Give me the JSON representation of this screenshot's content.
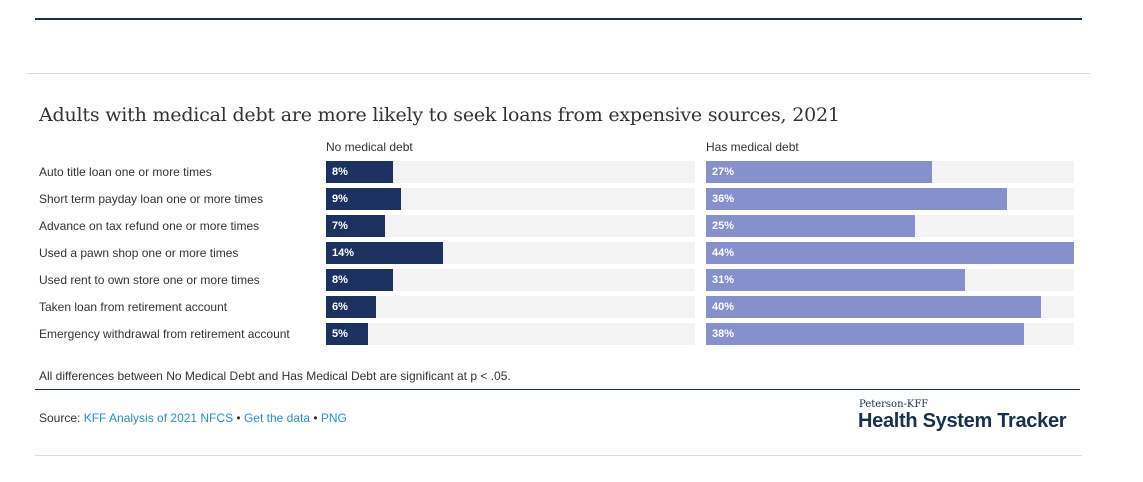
{
  "chart_data": {
    "type": "bar",
    "title": "Adults with medical debt are more likely to seek loans from expensive sources, 2021",
    "categories": [
      "Auto title loan one or more times",
      "Short term payday loan one or more times",
      "Advance on tax refund one or more times",
      "Used a pawn shop one or more times",
      "Used rent to own store one or more times",
      "Taken loan from retirement account",
      "Emergency withdrawal from retirement account"
    ],
    "series": [
      {
        "name": "No medical debt",
        "values": [
          8,
          9,
          7,
          14,
          8,
          6,
          5
        ],
        "labels": [
          "8%",
          "9%",
          "7%",
          "14%",
          "8%",
          "6%",
          "5%"
        ],
        "color": "#1c3160",
        "max": 44
      },
      {
        "name": "Has medical debt",
        "values": [
          27,
          36,
          25,
          44,
          31,
          40,
          38
        ],
        "labels": [
          "27%",
          "36%",
          "25%",
          "44%",
          "31%",
          "40%",
          "38%"
        ],
        "color": "#8590cc",
        "max": 44
      }
    ],
    "xlabel": "",
    "ylabel": ""
  },
  "note": "All differences between No Medical Debt and Has Medical Debt are significant at p < .05.",
  "source": {
    "prefix": "Source: ",
    "link1": "KFF Analysis of 2021 NFCS",
    "sep1": " • ",
    "link2": "Get the data",
    "sep2": " • ",
    "link3": "PNG"
  },
  "logo": {
    "small": "Peterson-KFF",
    "big": "Health System Tracker"
  }
}
